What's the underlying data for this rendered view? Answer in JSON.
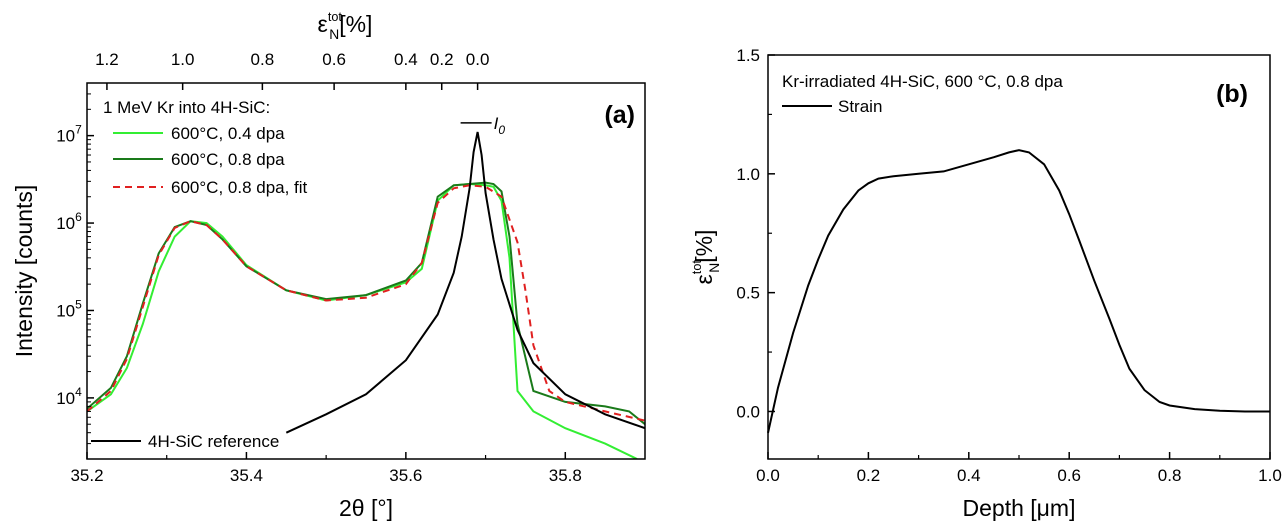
{
  "chart_data": [
    {
      "type": "line",
      "panel_label": "(a)",
      "xlabel": "2θ [°]",
      "ylabel": "Intensity [counts]",
      "top_axis_label": {
        "base": "ε",
        "sub": "N",
        "sup": "tot",
        "unit": "[%]"
      },
      "xlim": [
        35.2,
        35.9
      ],
      "ylim": [
        2000,
        40000000
      ],
      "y_scale": "log",
      "x_ticks": [
        "35.2",
        "35.4",
        "35.6",
        "35.8"
      ],
      "x_tick_values": [
        35.2,
        35.4,
        35.6,
        35.8
      ],
      "y_ticks": [
        {
          "base": "10",
          "exp": "4"
        },
        {
          "base": "10",
          "exp": "5"
        },
        {
          "base": "10",
          "exp": "6"
        },
        {
          "base": "10",
          "exp": "7"
        }
      ],
      "y_tick_values": [
        10000,
        100000,
        1000000,
        10000000
      ],
      "top_ticks": [
        {
          "label": "1.2",
          "x": 35.225
        },
        {
          "label": "1.0",
          "x": 35.32
        },
        {
          "label": "0.8",
          "x": 35.42
        },
        {
          "label": "0.6",
          "x": 35.51
        },
        {
          "label": "0.4",
          "x": 35.6
        },
        {
          "label": "0.2",
          "x": 35.645
        },
        {
          "label": "0.0",
          "x": 35.69
        }
      ],
      "legend_title": "1 MeV Kr into 4H-SiC:",
      "legend_position": "top-left",
      "annotation": {
        "text": "I",
        "sub": "0",
        "x": 35.69,
        "y": 14000000
      },
      "series": [
        {
          "name": "600°C, 0.4 dpa",
          "color": "#33ee33",
          "dash": "solid",
          "x": [
            35.2,
            35.23,
            35.25,
            35.27,
            35.29,
            35.31,
            35.33,
            35.35,
            35.37,
            35.4,
            35.45,
            35.5,
            35.55,
            35.6,
            35.62,
            35.64,
            35.66,
            35.68,
            35.7,
            35.71,
            35.72,
            35.73,
            35.74,
            35.76,
            35.8,
            35.85,
            35.89
          ],
          "y": [
            7000,
            11000,
            22000,
            70000,
            280000,
            700000,
            1050000,
            1000000,
            700000,
            330000,
            170000,
            130000,
            150000,
            210000,
            300000,
            1800000,
            2700000,
            2800000,
            2700000,
            2600000,
            1800000,
            400000,
            12000,
            7000,
            4500,
            3000,
            2000
          ]
        },
        {
          "name": "600°C, 0.8 dpa",
          "color": "#1a7a1a",
          "dash": "solid",
          "x": [
            35.2,
            35.23,
            35.25,
            35.27,
            35.29,
            35.31,
            35.33,
            35.35,
            35.37,
            35.4,
            35.45,
            35.5,
            35.55,
            35.6,
            35.62,
            35.64,
            35.66,
            35.68,
            35.7,
            35.71,
            35.72,
            35.73,
            35.74,
            35.76,
            35.8,
            35.85,
            35.88,
            35.9
          ],
          "y": [
            7500,
            13000,
            30000,
            120000,
            450000,
            900000,
            1050000,
            950000,
            650000,
            320000,
            170000,
            135000,
            150000,
            220000,
            350000,
            2000000,
            2700000,
            2800000,
            2900000,
            2800000,
            2300000,
            700000,
            70000,
            12000,
            9000,
            8000,
            7000,
            5000
          ]
        },
        {
          "name": "600°C, 0.8 dpa, fit",
          "color": "#e02020",
          "dash": "dashed",
          "x": [
            35.2,
            35.23,
            35.25,
            35.27,
            35.29,
            35.31,
            35.33,
            35.35,
            35.37,
            35.4,
            35.45,
            35.5,
            35.55,
            35.6,
            35.62,
            35.64,
            35.66,
            35.68,
            35.7,
            35.72,
            35.74,
            35.75,
            35.76,
            35.78,
            35.8,
            35.85,
            35.9
          ],
          "y": [
            7000,
            12000,
            28000,
            110000,
            430000,
            880000,
            1050000,
            950000,
            650000,
            320000,
            170000,
            130000,
            140000,
            200000,
            350000,
            1700000,
            2500000,
            2700000,
            2600000,
            2000000,
            600000,
            170000,
            40000,
            12000,
            9000,
            7000,
            5500
          ]
        },
        {
          "name": "4H-SiC reference",
          "color": "#000000",
          "dash": "solid",
          "x": [
            35.45,
            35.5,
            35.55,
            35.6,
            35.64,
            35.66,
            35.67,
            35.68,
            35.685,
            35.69,
            35.695,
            35.7,
            35.71,
            35.72,
            35.74,
            35.76,
            35.8,
            35.85,
            35.9
          ],
          "y": [
            4000,
            6500,
            11000,
            27000,
            90000,
            270000,
            700000,
            2500000,
            6500000,
            11000000,
            6000000,
            2200000,
            650000,
            230000,
            60000,
            25000,
            11000,
            6500,
            4500
          ]
        }
      ]
    },
    {
      "type": "line",
      "panel_label": "(b)",
      "xlabel": "Depth [μm]",
      "ylabel": {
        "base": "ε",
        "sub": "N",
        "sup": "tot",
        "unit": "[%]"
      },
      "xlim": [
        0.0,
        1.0
      ],
      "ylim": [
        -0.2,
        1.5
      ],
      "x_ticks": [
        "0.0",
        "0.2",
        "0.4",
        "0.6",
        "0.8",
        "1.0"
      ],
      "x_tick_values": [
        0.0,
        0.2,
        0.4,
        0.6,
        0.8,
        1.0
      ],
      "y_ticks": [
        "0.0",
        "0.5",
        "1.0",
        "1.5"
      ],
      "y_tick_values": [
        0.0,
        0.5,
        1.0,
        1.5
      ],
      "legend_title": "Kr-irradiated 4H-SiC, 600 °C, 0.8 dpa",
      "legend_position": "top-left",
      "series": [
        {
          "name": "Strain",
          "color": "#000000",
          "dash": "solid",
          "x": [
            0.0,
            0.02,
            0.05,
            0.08,
            0.1,
            0.12,
            0.15,
            0.18,
            0.2,
            0.22,
            0.25,
            0.3,
            0.35,
            0.4,
            0.45,
            0.48,
            0.5,
            0.52,
            0.55,
            0.58,
            0.6,
            0.62,
            0.65,
            0.68,
            0.7,
            0.72,
            0.75,
            0.78,
            0.8,
            0.85,
            0.9,
            0.95,
            1.0
          ],
          "y": [
            -0.09,
            0.1,
            0.33,
            0.53,
            0.64,
            0.74,
            0.85,
            0.93,
            0.96,
            0.98,
            0.99,
            1.0,
            1.01,
            1.04,
            1.07,
            1.09,
            1.1,
            1.09,
            1.04,
            0.93,
            0.83,
            0.72,
            0.55,
            0.39,
            0.28,
            0.18,
            0.09,
            0.04,
            0.025,
            0.01,
            0.003,
            0.0,
            0.0
          ]
        }
      ]
    }
  ]
}
